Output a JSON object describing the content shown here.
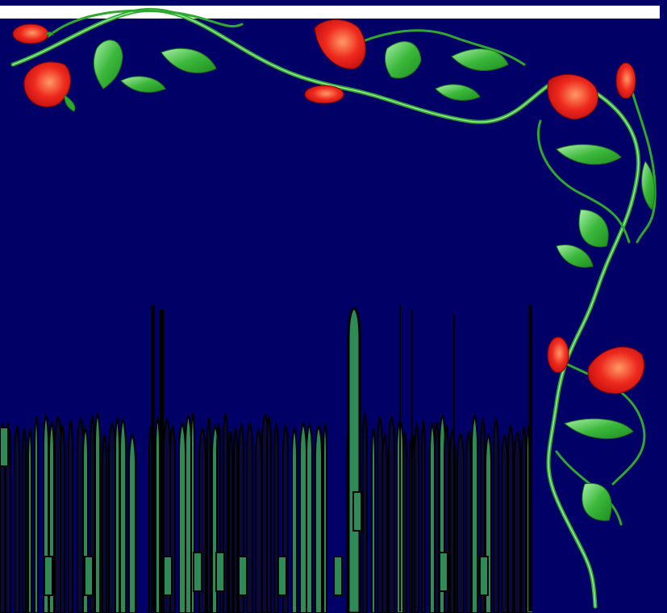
{
  "colors": {
    "background": "#000066",
    "band": "#ffffff",
    "vine": "#33b533",
    "vine_light": "#8fe08f",
    "leaf": "#2fa82f",
    "leaf_light": "#9be89b",
    "rose": "#e82020",
    "rose_light": "#ff8c66",
    "glyph_fill": "#2e8b57",
    "glyph_stroke": "#000000"
  },
  "decor": {
    "vine_icon": "rose-vine-icon",
    "leaf_icon": "leaf-icon",
    "rose_icon": "rose-bud-icon"
  }
}
